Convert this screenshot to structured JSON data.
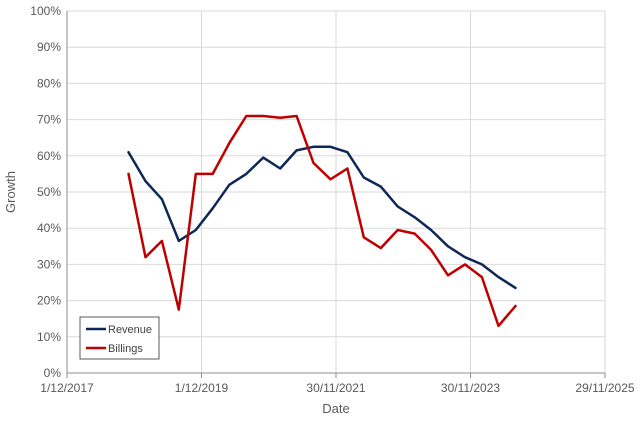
{
  "chart_data": {
    "type": "line",
    "xlabel": "Date",
    "ylabel": "Growth",
    "x_axis": {
      "type": "date",
      "min": "2017-12-01",
      "max": "2025-11-29",
      "tick_values": [
        "2017-12-01",
        "2019-12-01",
        "2021-11-30",
        "2023-11-30",
        "2025-11-29"
      ],
      "tick_labels": [
        "1/12/2017",
        "1/12/2019",
        "30/11/2021",
        "30/11/2023",
        "29/11/2025"
      ],
      "vertical_grid": true
    },
    "y_axis": {
      "min": 0,
      "max": 1,
      "tick_step": 0.1,
      "tick_labels": [
        "0%",
        "10%",
        "20%",
        "30%",
        "40%",
        "50%",
        "60%",
        "70%",
        "80%",
        "90%",
        "100%"
      ],
      "horizontal_grid": true
    },
    "legend_position": "bottom-left",
    "series": [
      {
        "name": "Revenue",
        "color": "#0d2857",
        "points": [
          [
            "2018-10-31",
            0.61
          ],
          [
            "2019-01-31",
            0.53
          ],
          [
            "2019-04-30",
            0.48
          ],
          [
            "2019-07-31",
            0.365
          ],
          [
            "2019-10-31",
            0.395
          ],
          [
            "2020-01-31",
            0.455
          ],
          [
            "2020-04-30",
            0.52
          ],
          [
            "2020-07-31",
            0.55
          ],
          [
            "2020-10-31",
            0.595
          ],
          [
            "2021-01-31",
            0.565
          ],
          [
            "2021-04-30",
            0.615
          ],
          [
            "2021-07-31",
            0.625
          ],
          [
            "2021-10-31",
            0.625
          ],
          [
            "2022-01-31",
            0.61
          ],
          [
            "2022-04-30",
            0.54
          ],
          [
            "2022-07-31",
            0.515
          ],
          [
            "2022-10-31",
            0.46
          ],
          [
            "2023-01-31",
            0.43
          ],
          [
            "2023-04-30",
            0.395
          ],
          [
            "2023-07-31",
            0.35
          ],
          [
            "2023-10-31",
            0.32
          ],
          [
            "2024-01-31",
            0.3
          ],
          [
            "2024-04-30",
            0.265
          ],
          [
            "2024-07-31",
            0.235
          ]
        ]
      },
      {
        "name": "Billings",
        "color": "#c00000",
        "points": [
          [
            "2018-10-31",
            0.55
          ],
          [
            "2019-01-31",
            0.32
          ],
          [
            "2019-04-30",
            0.365
          ],
          [
            "2019-07-31",
            0.175
          ],
          [
            "2019-10-31",
            0.55
          ],
          [
            "2020-01-31",
            0.55
          ],
          [
            "2020-04-30",
            0.635
          ],
          [
            "2020-07-31",
            0.71
          ],
          [
            "2020-10-31",
            0.71
          ],
          [
            "2021-01-31",
            0.705
          ],
          [
            "2021-04-30",
            0.71
          ],
          [
            "2021-07-31",
            0.58
          ],
          [
            "2021-10-31",
            0.535
          ],
          [
            "2022-01-31",
            0.565
          ],
          [
            "2022-04-30",
            0.375
          ],
          [
            "2022-07-31",
            0.345
          ],
          [
            "2022-10-31",
            0.395
          ],
          [
            "2023-01-31",
            0.385
          ],
          [
            "2023-04-30",
            0.34
          ],
          [
            "2023-07-31",
            0.27
          ],
          [
            "2023-10-31",
            0.3
          ],
          [
            "2024-01-31",
            0.265
          ],
          [
            "2024-04-30",
            0.13
          ],
          [
            "2024-07-31",
            0.185
          ]
        ]
      }
    ]
  }
}
